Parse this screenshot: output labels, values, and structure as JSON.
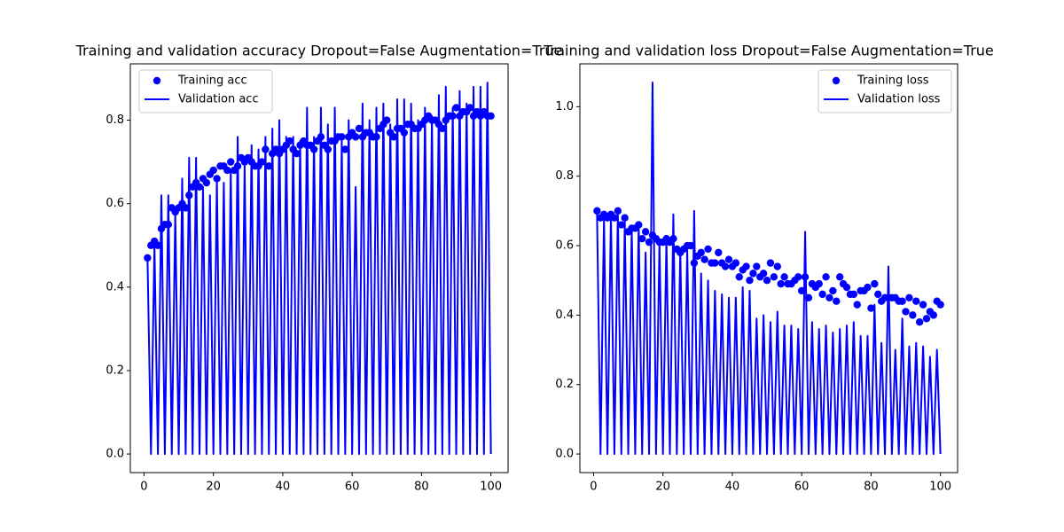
{
  "chart_data": [
    {
      "type": "line",
      "title": "Training and validation accuracy Dropout=False Augmentation=True",
      "x": [
        1,
        2,
        3,
        4,
        5,
        6,
        7,
        8,
        9,
        10,
        11,
        12,
        13,
        14,
        15,
        16,
        17,
        18,
        19,
        20,
        21,
        22,
        23,
        24,
        25,
        26,
        27,
        28,
        29,
        30,
        31,
        32,
        33,
        34,
        35,
        36,
        37,
        38,
        39,
        40,
        41,
        42,
        43,
        44,
        45,
        46,
        47,
        48,
        49,
        50,
        51,
        52,
        53,
        54,
        55,
        56,
        57,
        58,
        59,
        60,
        61,
        62,
        63,
        64,
        65,
        66,
        67,
        68,
        69,
        70,
        71,
        72,
        73,
        74,
        75,
        76,
        77,
        78,
        79,
        80,
        81,
        82,
        83,
        84,
        85,
        86,
        87,
        88,
        89,
        90,
        91,
        92,
        93,
        94,
        95,
        96,
        97,
        98,
        99,
        100
      ],
      "series": [
        {
          "name": "Training acc",
          "color": "#0000ff",
          "kind": "scatter",
          "values": [
            0.47,
            0.5,
            0.51,
            0.5,
            0.54,
            0.55,
            0.55,
            0.59,
            0.58,
            0.59,
            0.6,
            0.59,
            0.62,
            0.64,
            0.65,
            0.64,
            0.66,
            0.65,
            0.67,
            0.68,
            0.66,
            0.69,
            0.69,
            0.68,
            0.7,
            0.68,
            0.69,
            0.71,
            0.7,
            0.71,
            0.7,
            0.69,
            0.69,
            0.7,
            0.73,
            0.69,
            0.72,
            0.73,
            0.72,
            0.73,
            0.74,
            0.75,
            0.73,
            0.72,
            0.74,
            0.75,
            0.74,
            0.74,
            0.73,
            0.75,
            0.76,
            0.74,
            0.73,
            0.75,
            0.75,
            0.76,
            0.76,
            0.73,
            0.76,
            0.77,
            0.76,
            0.78,
            0.76,
            0.77,
            0.77,
            0.76,
            0.76,
            0.78,
            0.79,
            0.8,
            0.77,
            0.76,
            0.78,
            0.78,
            0.77,
            0.79,
            0.79,
            0.78,
            0.78,
            0.79,
            0.8,
            0.81,
            0.8,
            0.8,
            0.79,
            0.78,
            0.8,
            0.81,
            0.81,
            0.83,
            0.81,
            0.82,
            0.82,
            0.83,
            0.81,
            0.82,
            0.81,
            0.82,
            0.81,
            0.81
          ]
        },
        {
          "name": "Validation acc",
          "color": "#0000ff",
          "kind": "line",
          "values": [
            0.47,
            0,
            0.5,
            0,
            0.62,
            0,
            0.62,
            0,
            0.58,
            0,
            0.66,
            0,
            0.71,
            0,
            0.71,
            0,
            0.64,
            0,
            0.62,
            0,
            0.66,
            0,
            0.65,
            0,
            0.68,
            0,
            0.76,
            0,
            0.69,
            0,
            0.74,
            0,
            0.73,
            0,
            0.76,
            0,
            0.78,
            0,
            0.8,
            0,
            0.76,
            0,
            0.76,
            0,
            0.75,
            0,
            0.83,
            0,
            0.76,
            0,
            0.83,
            0,
            0.79,
            0,
            0.83,
            0,
            0.75,
            0,
            0.8,
            0,
            0.64,
            0,
            0.84,
            0,
            0.8,
            0,
            0.83,
            0,
            0.84,
            0,
            0.79,
            0,
            0.85,
            0,
            0.85,
            0,
            0.84,
            0,
            0.8,
            0,
            0.83,
            0,
            0.81,
            0,
            0.86,
            0,
            0.88,
            0,
            0.83,
            0,
            0.87,
            0,
            0.84,
            0,
            0.88,
            0,
            0.88,
            0,
            0.89,
            0
          ]
        }
      ],
      "xlim": [
        -3.95,
        104.95
      ],
      "xticks": [
        0,
        20,
        40,
        60,
        80,
        100
      ],
      "ylim": [
        -0.0445,
        0.935
      ],
      "yticks": [
        {
          "value": 0,
          "label": "0.0"
        },
        {
          "value": 0.2,
          "label": "0.2"
        },
        {
          "value": 0.4,
          "label": "0.4"
        },
        {
          "value": 0.6,
          "label": "0.6"
        },
        {
          "value": 0.8,
          "label": "0.8"
        }
      ],
      "legend": "upper left"
    },
    {
      "type": "line",
      "title": "Training and validation loss Dropout=False Augmentation=True",
      "x": [
        1,
        2,
        3,
        4,
        5,
        6,
        7,
        8,
        9,
        10,
        11,
        12,
        13,
        14,
        15,
        16,
        17,
        18,
        19,
        20,
        21,
        22,
        23,
        24,
        25,
        26,
        27,
        28,
        29,
        30,
        31,
        32,
        33,
        34,
        35,
        36,
        37,
        38,
        39,
        40,
        41,
        42,
        43,
        44,
        45,
        46,
        47,
        48,
        49,
        50,
        51,
        52,
        53,
        54,
        55,
        56,
        57,
        58,
        59,
        60,
        61,
        62,
        63,
        64,
        65,
        66,
        67,
        68,
        69,
        70,
        71,
        72,
        73,
        74,
        75,
        76,
        77,
        78,
        79,
        80,
        81,
        82,
        83,
        84,
        85,
        86,
        87,
        88,
        89,
        90,
        91,
        92,
        93,
        94,
        95,
        96,
        97,
        98,
        99,
        100
      ],
      "series": [
        {
          "name": "Training loss",
          "color": "#0000ff",
          "kind": "scatter",
          "values": [
            0.7,
            0.68,
            0.69,
            0.68,
            0.69,
            0.68,
            0.7,
            0.66,
            0.68,
            0.64,
            0.65,
            0.65,
            0.66,
            0.62,
            0.64,
            0.61,
            0.63,
            0.62,
            0.61,
            0.61,
            0.62,
            0.61,
            0.62,
            0.59,
            0.58,
            0.59,
            0.6,
            0.6,
            0.55,
            0.57,
            0.58,
            0.56,
            0.59,
            0.55,
            0.55,
            0.58,
            0.55,
            0.54,
            0.56,
            0.54,
            0.55,
            0.51,
            0.53,
            0.54,
            0.5,
            0.52,
            0.54,
            0.51,
            0.52,
            0.5,
            0.55,
            0.51,
            0.54,
            0.49,
            0.51,
            0.49,
            0.49,
            0.5,
            0.51,
            0.47,
            0.51,
            0.45,
            0.49,
            0.48,
            0.49,
            0.46,
            0.51,
            0.45,
            0.47,
            0.44,
            0.51,
            0.49,
            0.48,
            0.46,
            0.46,
            0.43,
            0.47,
            0.47,
            0.48,
            0.42,
            0.49,
            0.46,
            0.44,
            0.45,
            0.45,
            0.45,
            0.45,
            0.44,
            0.44,
            0.41,
            0.45,
            0.4,
            0.44,
            0.38,
            0.43,
            0.39,
            0.41,
            0.4,
            0.44,
            0.43
          ]
        },
        {
          "name": "Validation loss",
          "color": "#0000ff",
          "kind": "line",
          "values": [
            0.69,
            0,
            0.68,
            0,
            0.69,
            0,
            0.7,
            0,
            0.67,
            0,
            0.65,
            0,
            0.66,
            0,
            0.58,
            0,
            1.07,
            0,
            0.61,
            0,
            0.62,
            0,
            0.69,
            0,
            0.59,
            0,
            0.59,
            0,
            0.7,
            0,
            0.52,
            0,
            0.5,
            0,
            0.47,
            0,
            0.46,
            0,
            0.45,
            0,
            0.45,
            0,
            0.48,
            0,
            0.47,
            0,
            0.39,
            0,
            0.4,
            0,
            0.38,
            0,
            0.41,
            0,
            0.37,
            0,
            0.37,
            0,
            0.36,
            0,
            0.64,
            0,
            0.38,
            0,
            0.36,
            0,
            0.37,
            0,
            0.35,
            0,
            0.36,
            0,
            0.37,
            0,
            0.38,
            0,
            0.34,
            0,
            0.34,
            0,
            0.43,
            0,
            0.32,
            0,
            0.54,
            0,
            0.3,
            0,
            0.39,
            0,
            0.31,
            0,
            0.32,
            0,
            0.31,
            0,
            0.28,
            0,
            0.3,
            0
          ]
        }
      ],
      "xlim": [
        -3.95,
        104.95
      ],
      "xticks": [
        0,
        20,
        40,
        60,
        80,
        100
      ],
      "ylim": [
        -0.0535,
        1.1235
      ],
      "yticks": [
        {
          "value": 0,
          "label": "0.0"
        },
        {
          "value": 0.2,
          "label": "0.2"
        },
        {
          "value": 0.4,
          "label": "0.4"
        },
        {
          "value": 0.6,
          "label": "0.6"
        },
        {
          "value": 0.8,
          "label": "0.8"
        },
        {
          "value": 1.0,
          "label": "1.0"
        }
      ],
      "legend": "upper right"
    }
  ]
}
